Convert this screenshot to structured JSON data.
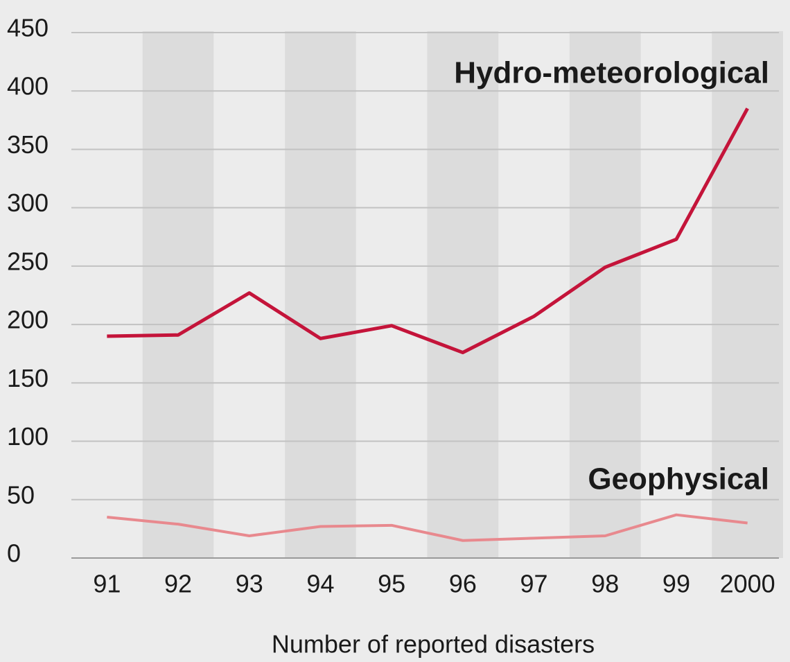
{
  "chart_data": {
    "type": "line",
    "x_label": "Number of reported disasters",
    "categories": [
      "91",
      "92",
      "93",
      "94",
      "95",
      "96",
      "97",
      "98",
      "99",
      "2000"
    ],
    "series": [
      {
        "name": "Hydro-meteorological",
        "color": "#c4143a",
        "values": [
          190,
          191,
          227,
          188,
          199,
          176,
          207,
          249,
          273,
          385
        ]
      },
      {
        "name": "Geophysical",
        "color": "#e8898e",
        "values": [
          35,
          29,
          19,
          27,
          28,
          15,
          17,
          19,
          37,
          30
        ]
      }
    ],
    "ylim": [
      0,
      450
    ],
    "yticks": [
      0,
      50,
      100,
      150,
      200,
      250,
      300,
      350,
      400,
      450
    ],
    "grid": true
  }
}
